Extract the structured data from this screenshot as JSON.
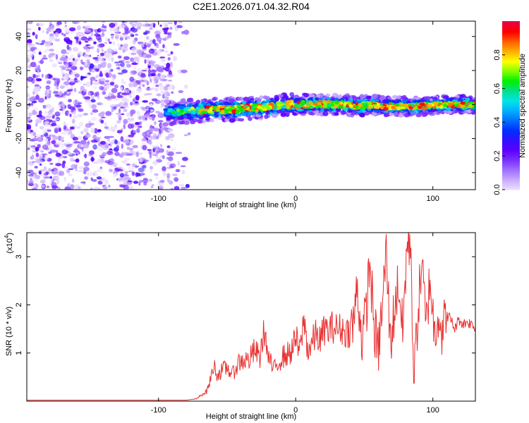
{
  "chart_data": [
    {
      "type": "heatmap",
      "title": "C2E1.2026.071.04.32.R04",
      "xlabel": "Height of straight line (km)",
      "ylabel": "Frequency (Hz)",
      "xlim": [
        -196,
        131
      ],
      "ylim": [
        -50,
        49
      ],
      "xticks": [
        -100,
        0,
        100
      ],
      "yticks": [
        -40,
        -20,
        0,
        20,
        40
      ],
      "colorbar": {
        "label": "Normalized spectral amplitude",
        "range": [
          0,
          1
        ],
        "ticks": [
          0.0,
          0.2,
          0.4,
          0.6,
          0.8
        ],
        "colormap": [
          "#e9dcff",
          "#c7a8ff",
          "#9d6cff",
          "#7a2cff",
          "#5a00ff",
          "#3010ff",
          "#0030ff",
          "#0070ff",
          "#00b0ff",
          "#00e5e5",
          "#00e08a",
          "#00f000",
          "#7fff00",
          "#ffff00",
          "#ffb000",
          "#ff6000",
          "#ff0000",
          "#e80040"
        ]
      },
      "features": {
        "noise_region": {
          "x_range": [
            -196,
            -90
          ],
          "freq_range": [
            -50,
            49
          ]
        },
        "signal_band": [
          {
            "x": -95,
            "f": -5.0
          },
          {
            "x": -85,
            "f": -4.0
          },
          {
            "x": -75,
            "f": -4.0
          },
          {
            "x": -65,
            "f": -3.0
          },
          {
            "x": -55,
            "f": -3.0
          },
          {
            "x": -45,
            "f": -3.0
          },
          {
            "x": -35,
            "f": -2.0
          },
          {
            "x": -25,
            "f": -2.0
          },
          {
            "x": -15,
            "f": -1.0
          },
          {
            "x": -5,
            "f": 0.0
          },
          {
            "x": 5,
            "f": 0.0
          },
          {
            "x": 15,
            "f": 0.0
          },
          {
            "x": 25,
            "f": 0.0
          },
          {
            "x": 35,
            "f": 0.0
          },
          {
            "x": 45,
            "f": -1.0
          },
          {
            "x": 55,
            "f": 0.0
          },
          {
            "x": 65,
            "f": -1.0
          },
          {
            "x": 75,
            "f": -1.0
          },
          {
            "x": 85,
            "f": -1.0
          },
          {
            "x": 95,
            "f": -1.0
          },
          {
            "x": 105,
            "f": 0.0
          },
          {
            "x": 115,
            "f": 0.0
          },
          {
            "x": 125,
            "f": 0.0
          },
          {
            "x": 131,
            "f": 0.0
          }
        ]
      }
    },
    {
      "type": "line",
      "xlabel": "Height of straight line (km)",
      "ylabel": "SNR (10 * v/v)",
      "y_scale_label": "(x10",
      "y_scale_exponent": "4",
      "xlim": [
        -196,
        131
      ],
      "ylim": [
        0,
        3.5
      ],
      "xticks": [
        -100,
        0,
        100
      ],
      "yticks": [
        1,
        2,
        3
      ],
      "series": [
        {
          "name": "SNR",
          "color": "#e83030",
          "points": [
            [
              -196,
              0.02
            ],
            [
              -150,
              0.02
            ],
            [
              -100,
              0.02
            ],
            [
              -80,
              0.02
            ],
            [
              -72,
              0.05
            ],
            [
              -68,
              0.15
            ],
            [
              -65,
              0.2
            ],
            [
              -62,
              0.45
            ],
            [
              -60,
              0.75
            ],
            [
              -57,
              0.55
            ],
            [
              -54,
              0.62
            ],
            [
              -50,
              0.7
            ],
            [
              -46,
              0.55
            ],
            [
              -42,
              0.8
            ],
            [
              -38,
              0.85
            ],
            [
              -34,
              0.85
            ],
            [
              -30,
              1.05
            ],
            [
              -26,
              0.9
            ],
            [
              -23,
              1.5
            ],
            [
              -20,
              0.9
            ],
            [
              -16,
              0.65
            ],
            [
              -12,
              0.85
            ],
            [
              -8,
              0.95
            ],
            [
              -4,
              1.0
            ],
            [
              0,
              1.3
            ],
            [
              3,
              1.0
            ],
            [
              6,
              1.7
            ],
            [
              9,
              1.05
            ],
            [
              12,
              1.2
            ],
            [
              15,
              1.4
            ],
            [
              18,
              1.25
            ],
            [
              21,
              1.5
            ],
            [
              24,
              1.45
            ],
            [
              27,
              1.55
            ],
            [
              30,
              1.5
            ],
            [
              33,
              1.5
            ],
            [
              36,
              1.45
            ],
            [
              39,
              1.45
            ],
            [
              42,
              1.6
            ],
            [
              45,
              2.4
            ],
            [
              48,
              1.3
            ],
            [
              51,
              1.7
            ],
            [
              54,
              2.9
            ],
            [
              57,
              1.6
            ],
            [
              60,
              1.0
            ],
            [
              63,
              1.9
            ],
            [
              66,
              3.1
            ],
            [
              69,
              1.2
            ],
            [
              72,
              1.9
            ],
            [
              75,
              2.5
            ],
            [
              78,
              1.4
            ],
            [
              81,
              3.2
            ],
            [
              84,
              3.3
            ],
            [
              86,
              0.35
            ],
            [
              89,
              1.8
            ],
            [
              92,
              2.9
            ],
            [
              95,
              1.5
            ],
            [
              98,
              2.6
            ],
            [
              101,
              1.4
            ],
            [
              104,
              1.9
            ],
            [
              107,
              1.4
            ],
            [
              110,
              1.8
            ],
            [
              113,
              1.7
            ],
            [
              116,
              1.5
            ],
            [
              119,
              1.7
            ],
            [
              122,
              1.6
            ],
            [
              125,
              1.65
            ],
            [
              128,
              1.6
            ],
            [
              131,
              1.55
            ]
          ]
        }
      ]
    }
  ]
}
